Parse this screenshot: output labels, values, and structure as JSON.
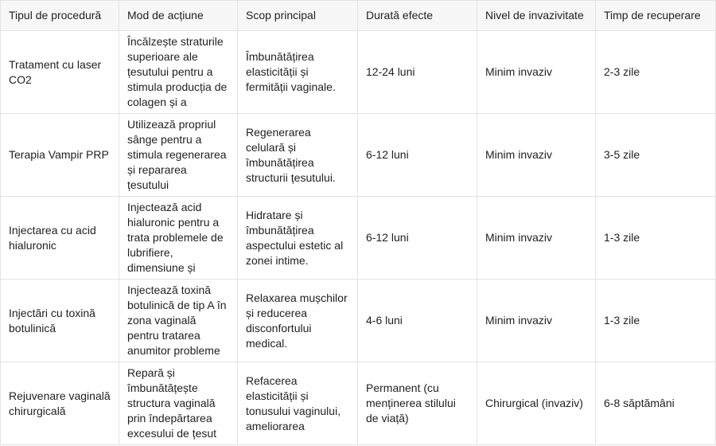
{
  "table": {
    "headers": [
      "Tipul de procedură",
      "Mod de acțiune",
      "Scop principal",
      "Durată efecte",
      "Nivel de invazivitate",
      "Timp de recuperare"
    ],
    "rows": [
      [
        "Tratament cu laser CO2",
        "Încălzește straturile superioare ale țesutului pentru a stimula producția de colagen și a",
        "Îmbunătățirea elasticității și fermității vaginale.",
        "12-24 luni",
        "Minim invaziv",
        "2-3 zile"
      ],
      [
        "Terapia Vampir PRP",
        "Utilizează propriul sânge pentru a stimula regenerarea și repararea țesutului",
        "Regenerarea celulară și îmbunătățirea structurii țesutului.",
        "6-12 luni",
        "Minim invaziv",
        "3-5 zile"
      ],
      [
        "Injectarea cu acid hialuronic",
        "Injectează acid hialuronic pentru a trata problemele de lubrifiere, dimensiune și",
        "Hidratare și îmbunătățirea aspectului estetic al zonei intime.",
        "6-12 luni",
        "Minim invaziv",
        "1-3 zile"
      ],
      [
        "Injectări cu toxină botulinică",
        "Injectează toxină botulinică de tip A în zona vaginală pentru tratarea anumitor probleme",
        "Relaxarea mușchilor și reducerea disconfortului medical.",
        "4-6 luni",
        "Minim invaziv",
        "1-3 zile"
      ],
      [
        "Rejuvenare vaginală chirurgicală",
        "Repară și îmbunătățește structura vaginală prin îndepărtarea excesului de țesut",
        "Refacerea elasticității și tonusului vaginului, ameliorarea",
        "Permanent (cu menținerea stilului de viață)",
        "Chirurgical (invaziv)",
        "6-8 săptămâni"
      ]
    ]
  }
}
